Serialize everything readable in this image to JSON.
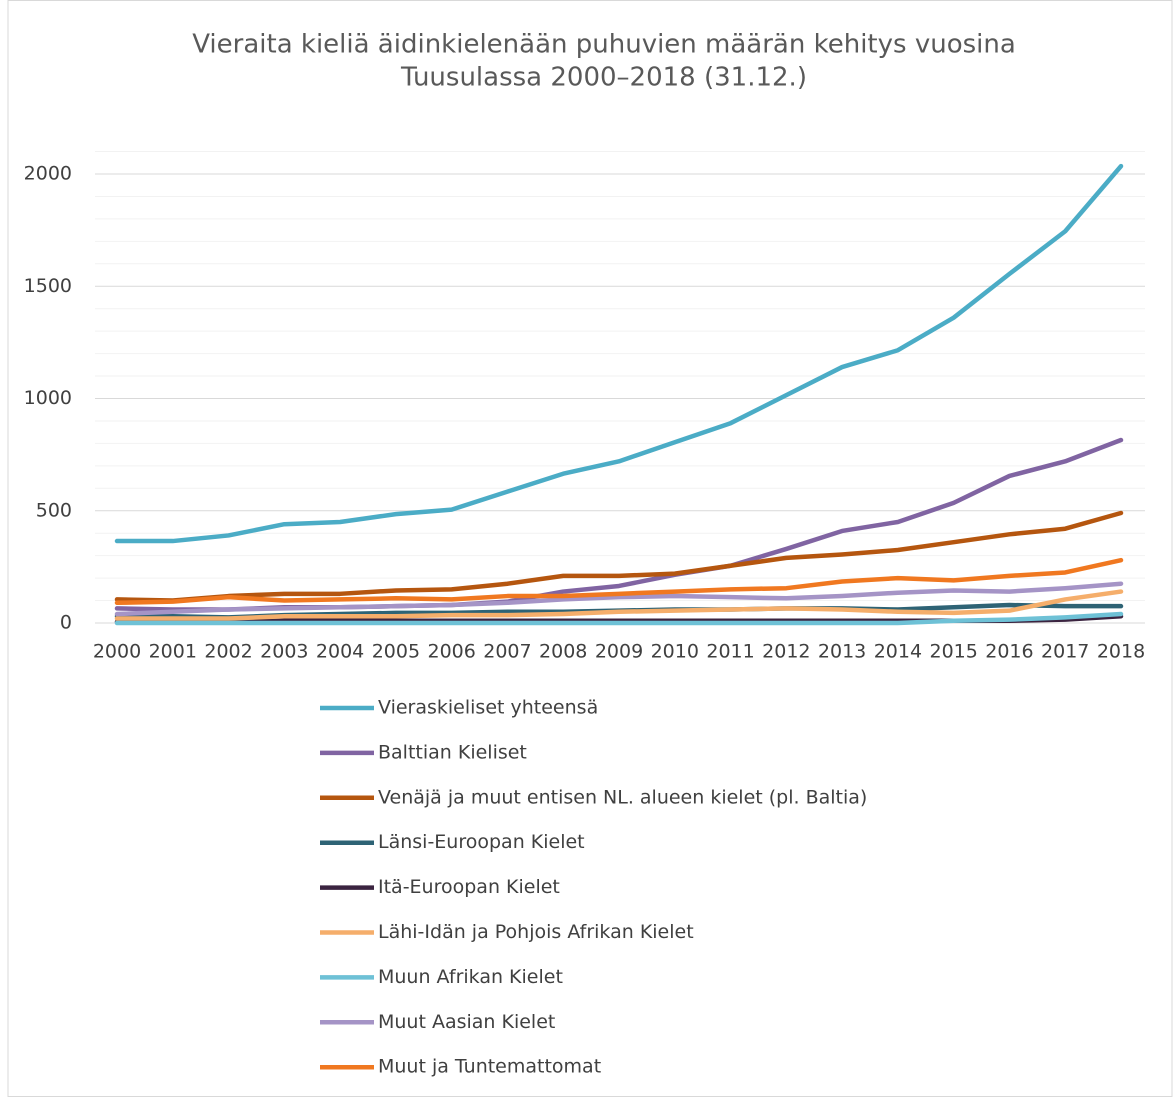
{
  "chart_data": {
    "type": "line",
    "title": [
      "Vieraita kieliä äidinkielenään puhuvien määrän kehitys vuosina",
      "Tuusulassa 2000–2018 (31.12.)"
    ],
    "categories": [
      "2000",
      "2001",
      "2002",
      "2003",
      "2004",
      "2005",
      "2006",
      "2007",
      "2008",
      "2009",
      "2010",
      "2011",
      "2012",
      "2013",
      "2014",
      "2015",
      "2016",
      "2017",
      "2018"
    ],
    "series": [
      {
        "name": "Vieraskieliset yhteensä",
        "color": "#4bacc6",
        "values": [
          365,
          365,
          390,
          440,
          450,
          485,
          505,
          585,
          665,
          720,
          805,
          890,
          1015,
          1140,
          1215,
          1360,
          1555,
          1745,
          2035
        ]
      },
      {
        "name": "Balttian Kieliset",
        "color": "#8064a2",
        "values": [
          65,
          60,
          60,
          70,
          70,
          75,
          80,
          95,
          140,
          165,
          215,
          255,
          330,
          410,
          450,
          535,
          655,
          720,
          815
        ]
      },
      {
        "name": "Venäjä ja muut entisen NL. alueen kielet (pl. Baltia)",
        "color": "#b5560f",
        "values": [
          105,
          100,
          120,
          130,
          130,
          145,
          150,
          175,
          210,
          210,
          220,
          255,
          290,
          305,
          325,
          360,
          395,
          420,
          490
        ]
      },
      {
        "name": "Länsi-Euroopan Kielet",
        "color": "#2e6375",
        "values": [
          30,
          30,
          25,
          35,
          40,
          45,
          45,
          50,
          50,
          55,
          60,
          60,
          65,
          65,
          60,
          70,
          80,
          75,
          75
        ]
      },
      {
        "name": "Itä-Euroopan Kielet",
        "color": "#3b2440",
        "values": [
          5,
          5,
          5,
          10,
          10,
          10,
          10,
          10,
          10,
          10,
          10,
          10,
          10,
          10,
          10,
          10,
          10,
          15,
          30
        ]
      },
      {
        "name": "Lähi-Idän ja Pohjois Afrikan Kielet",
        "color": "#f5ae6b",
        "values": [
          20,
          20,
          20,
          30,
          30,
          30,
          35,
          35,
          40,
          50,
          55,
          60,
          65,
          60,
          50,
          45,
          55,
          105,
          140
        ]
      },
      {
        "name": "Muun Afrikan Kielet",
        "color": "#6ec1d6",
        "values": [
          0,
          0,
          0,
          0,
          0,
          0,
          0,
          0,
          0,
          0,
          0,
          0,
          0,
          0,
          0,
          10,
          15,
          25,
          40
        ]
      },
      {
        "name": "Muut Aasian Kielet",
        "color": "#a594c6",
        "values": [
          40,
          50,
          60,
          65,
          70,
          75,
          80,
          90,
          105,
          115,
          120,
          115,
          110,
          120,
          135,
          145,
          140,
          155,
          175
        ]
      },
      {
        "name": "Muut ja Tuntemattomat",
        "color": "#f07820",
        "values": [
          90,
          95,
          115,
          100,
          105,
          110,
          105,
          120,
          120,
          130,
          140,
          150,
          155,
          185,
          200,
          190,
          210,
          225,
          280
        ]
      }
    ],
    "ylim": [
      0,
      2100
    ],
    "yticks": [
      0,
      500,
      1000,
      1500,
      2000
    ],
    "yticks_minor": [
      100,
      200,
      300,
      400,
      600,
      700,
      800,
      900,
      1100,
      1200,
      1300,
      1400,
      1600,
      1700,
      1800,
      1900,
      2100
    ],
    "grid": true,
    "legend": "bottom"
  }
}
